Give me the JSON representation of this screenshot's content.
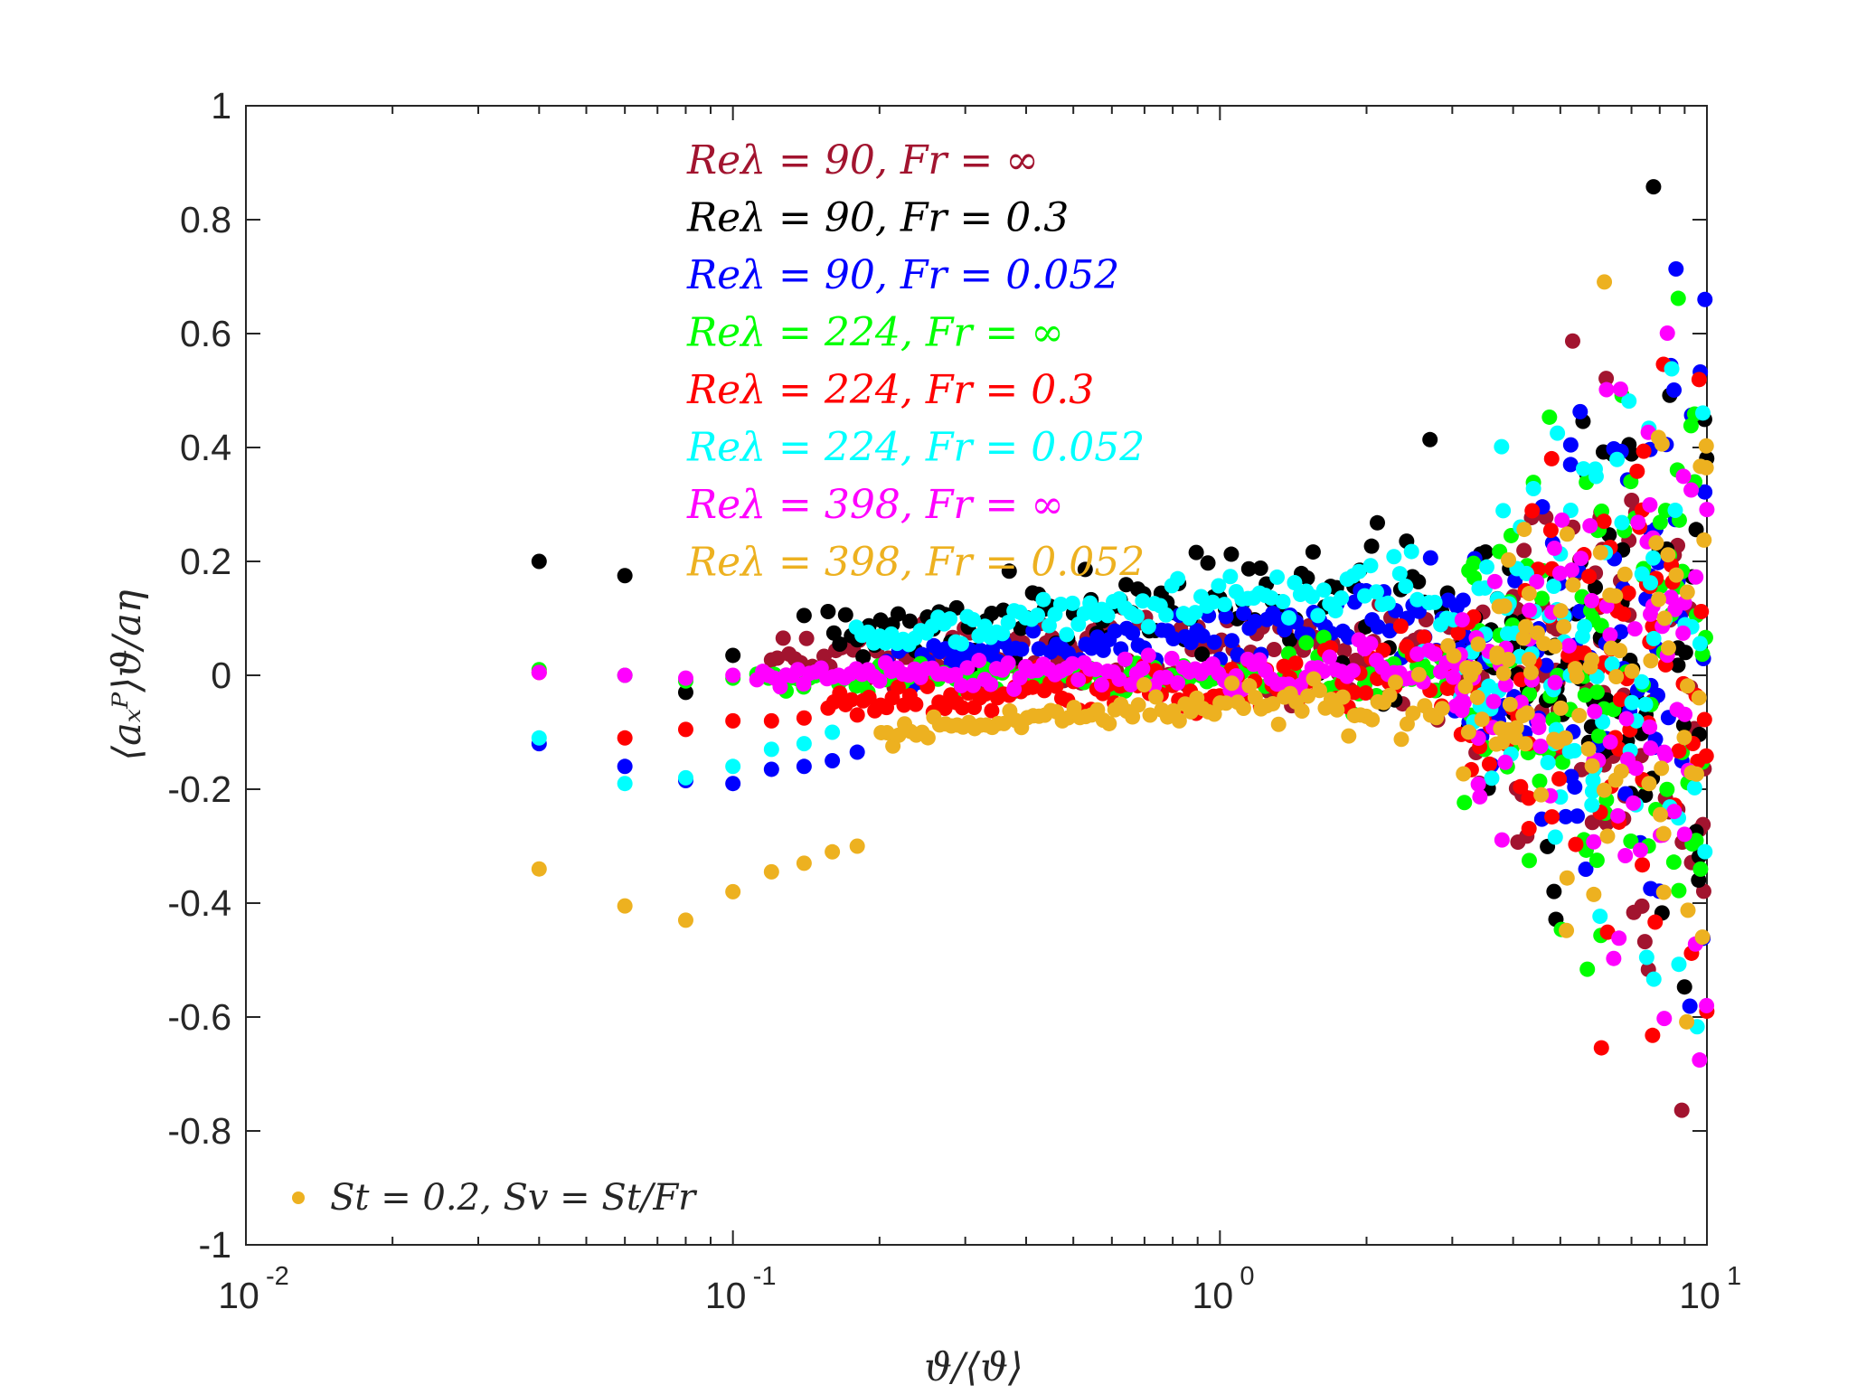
{
  "chart_data": {
    "type": "scatter",
    "title": "",
    "xlabel": "ϑ/⟨ϑ⟩",
    "ylabel": "⟨aₓᴾ⟩ϑ/aη",
    "xscale": "log",
    "xlim": [
      0.01,
      10
    ],
    "ylim": [
      -1,
      1
    ],
    "grid": false,
    "legend_position": "top-center",
    "x_ticks": [
      {
        "base": "10",
        "exp": "-2"
      },
      {
        "base": "10",
        "exp": "-1"
      },
      {
        "base": "10",
        "exp": "0"
      },
      {
        "base": "10",
        "exp": "1"
      }
    ],
    "y_ticks": [
      "1",
      "0.8",
      "0.6",
      "0.4",
      "0.2",
      "0",
      "-0.2",
      "-0.4",
      "-0.6",
      "-0.8",
      "-1"
    ],
    "annotation": "St = 0.2, Sv = St/Fr",
    "annotation_color": "#EDB120",
    "series": [
      {
        "name": "Reλ = 90, Fr = ∞",
        "color": "#A2142F",
        "seed": 1,
        "offset": 0.045,
        "slope": 0.015,
        "noise": 0.02
      },
      {
        "name": "Reλ = 90, Fr = 0.3",
        "color": "#000000",
        "seed": 2,
        "x": [
          0.04,
          0.06,
          0.08,
          0.1,
          0.12,
          0.14
        ],
        "y": [
          0.2,
          0.175,
          -0.03,
          0.035,
          0.0,
          0.105
        ],
        "offset": 0.12,
        "slope": 0.06,
        "noise": 0.028
      },
      {
        "name": "Reλ = 90, Fr = 0.052",
        "color": "#0000FF",
        "seed": 3,
        "x": [
          0.04,
          0.06,
          0.08,
          0.1,
          0.12,
          0.14,
          0.16,
          0.18
        ],
        "y": [
          -0.12,
          -0.16,
          -0.185,
          -0.19,
          -0.165,
          -0.16,
          -0.15,
          -0.135
        ],
        "offset": 0.07,
        "slope": 0.07,
        "noise": 0.012
      },
      {
        "name": "Reλ = 224, Fr = ∞",
        "color": "#00FF00",
        "seed": 4,
        "x": [
          0.04,
          0.06,
          0.08,
          0.1
        ],
        "y": [
          0.01,
          0.0,
          -0.01,
          -0.005
        ],
        "offset": 0.0,
        "slope": 0.005,
        "noise": 0.01
      },
      {
        "name": "Reλ = 224, Fr = 0.3",
        "color": "#FF0000",
        "seed": 5,
        "x": [
          0.04,
          0.06,
          0.08,
          0.1,
          0.12,
          0.14
        ],
        "y": [
          0.005,
          -0.11,
          -0.095,
          -0.08,
          -0.08,
          -0.075
        ],
        "offset": -0.02,
        "slope": 0.04,
        "noise": 0.012
      },
      {
        "name": "Reλ = 224, Fr = 0.052",
        "color": "#00FFFF",
        "seed": 6,
        "x": [
          0.04,
          0.06,
          0.08,
          0.1,
          0.12,
          0.14,
          0.16
        ],
        "y": [
          -0.11,
          -0.19,
          -0.18,
          -0.16,
          -0.13,
          -0.12,
          -0.1
        ],
        "offset": 0.13,
        "slope": 0.09,
        "noise": 0.012
      },
      {
        "name": "Reλ = 398, Fr = ∞",
        "color": "#FF00FF",
        "seed": 7,
        "x": [
          0.04,
          0.06,
          0.08,
          0.1
        ],
        "y": [
          0.005,
          0.0,
          -0.005,
          0.0
        ],
        "offset": 0.005,
        "slope": 0.003,
        "noise": 0.008
      },
      {
        "name": "Reλ = 398, Fr = 0.052",
        "color": "#EDB120",
        "seed": 8,
        "x": [
          0.04,
          0.06,
          0.08,
          0.1,
          0.12,
          0.14,
          0.16,
          0.18
        ],
        "y": [
          -0.34,
          -0.405,
          -0.43,
          -0.38,
          -0.345,
          -0.33,
          -0.31,
          -0.3
        ],
        "offset": -0.05,
        "slope": 0.16,
        "noise": 0.008
      }
    ]
  }
}
